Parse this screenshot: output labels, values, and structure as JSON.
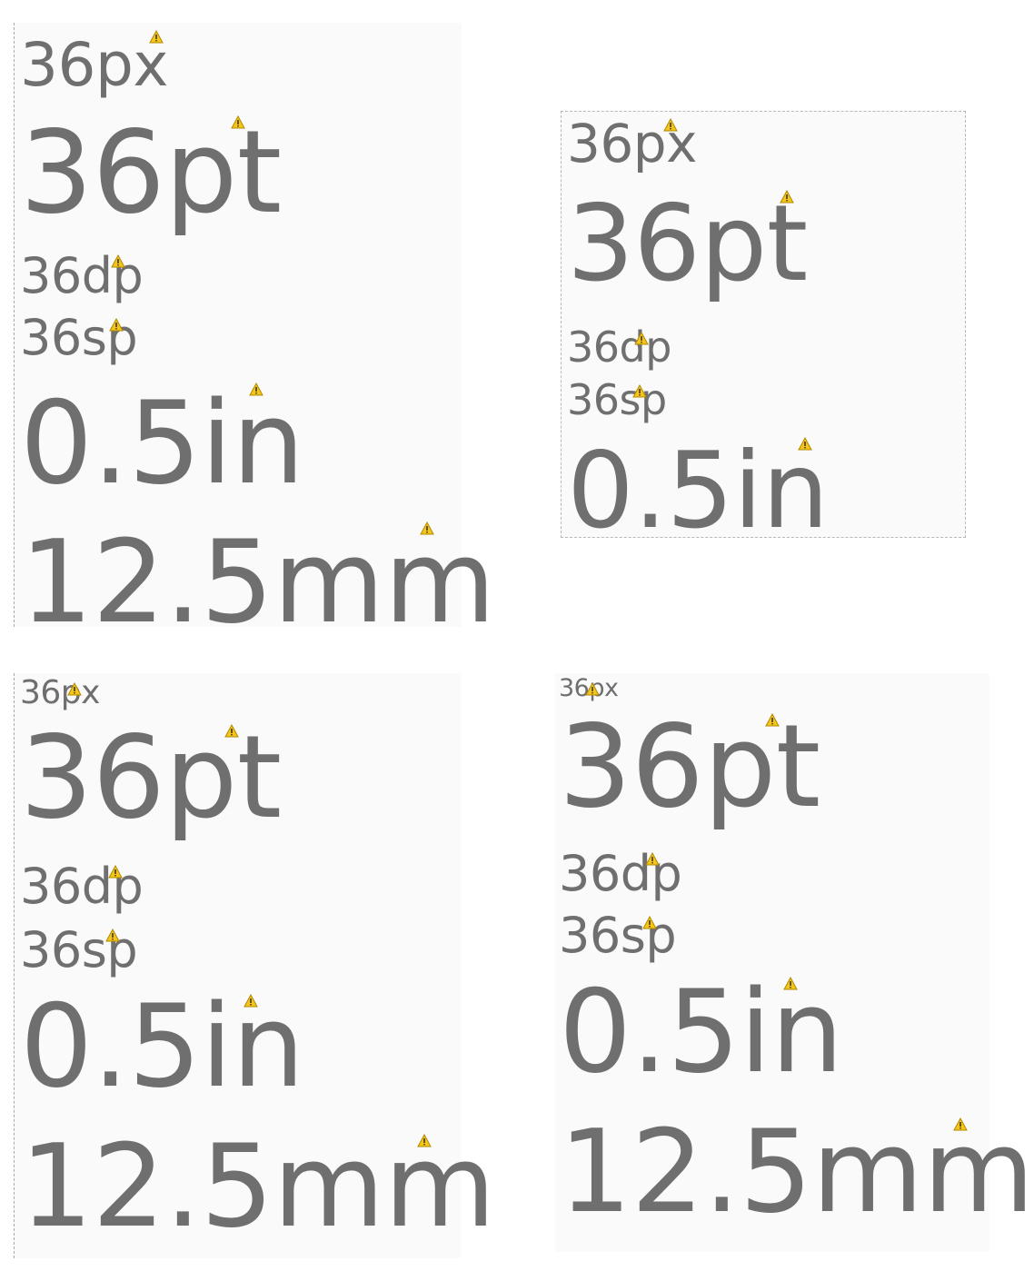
{
  "panels": [
    {
      "labels": [
        "36px",
        "36pt",
        "36dp",
        "36sp",
        "0.5in",
        "12.5mm"
      ]
    },
    {
      "labels": [
        "36px",
        "36pt",
        "36dp",
        "36sp",
        "0.5in"
      ]
    },
    {
      "labels": [
        "36px",
        "36pt",
        "36dp",
        "36sp",
        "0.5in",
        "12.5mm"
      ]
    },
    {
      "labels": [
        "36px",
        "36pt",
        "36dp",
        "36sp",
        "0.5in",
        "12.5mm"
      ]
    }
  ],
  "icons": {
    "warning": "warning-icon"
  },
  "colors": {
    "text": "#6f6f6f",
    "background": "#fafafa",
    "warning": "#f5c518"
  }
}
